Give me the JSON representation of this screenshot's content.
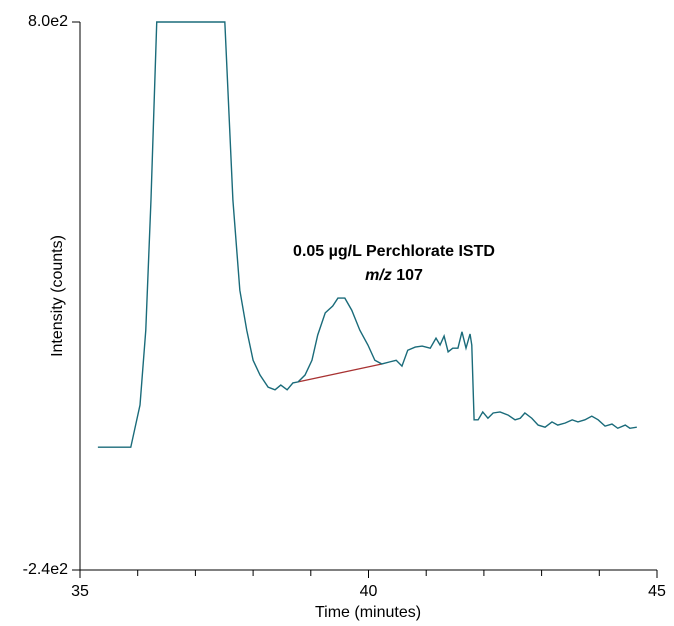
{
  "chart_data": {
    "type": "line",
    "x_label": "Time (minutes)",
    "y_label": "Intensity (counts)",
    "annotation": {
      "text": "0.05 µg/L Perchlorate ISTD",
      "mz_label": "m/z",
      "mz_value": "107"
    },
    "xlim": [
      35,
      45
    ],
    "xticks": [
      35,
      40,
      45
    ],
    "xticks_minor": [
      36,
      37,
      38,
      39,
      41,
      42,
      43,
      44
    ],
    "ylim": [
      -240,
      800
    ],
    "yticks": [
      {
        "value": 800,
        "label": "8.0e2"
      },
      {
        "value": -240,
        "label": "-2.4e2"
      }
    ],
    "color": "#1a6b7a",
    "x": [
      35.31,
      35.88,
      36.04,
      36.14,
      36.23,
      36.33,
      37.51,
      37.65,
      37.77,
      37.89,
      38.0,
      38.12,
      38.26,
      38.38,
      38.48,
      38.59,
      38.69,
      38.78,
      38.9,
      39.02,
      39.12,
      39.25,
      39.38,
      39.47,
      39.59,
      39.71,
      39.85,
      39.99,
      40.11,
      40.23,
      40.37,
      40.48,
      40.58,
      40.68,
      40.81,
      40.93,
      41.07,
      41.17,
      41.24,
      41.31,
      41.38,
      41.46,
      41.55,
      41.62,
      41.69,
      41.76,
      41.79,
      41.83,
      41.9,
      41.98,
      42.07,
      42.16,
      42.28,
      42.42,
      42.54,
      42.63,
      42.71,
      42.83,
      42.94,
      43.06,
      43.18,
      43.28,
      43.41,
      43.53,
      43.63,
      43.75,
      43.87,
      43.98,
      44.1,
      44.22,
      44.32,
      44.45,
      44.53,
      44.65
    ],
    "values": [
      -7,
      -7,
      73,
      215,
      462,
      800,
      800,
      462,
      291,
      215,
      158,
      130,
      107,
      102,
      111,
      102,
      115,
      117,
      130,
      158,
      206,
      248,
      261,
      276,
      276,
      253,
      215,
      187,
      158,
      151,
      155,
      158,
      147,
      177,
      183,
      185,
      181,
      200,
      187,
      204,
      174,
      181,
      181,
      212,
      181,
      208,
      187,
      45,
      45,
      60,
      48,
      58,
      60,
      54,
      45,
      48,
      58,
      48,
      35,
      31,
      41,
      35,
      39,
      45,
      41,
      45,
      52,
      45,
      33,
      37,
      29,
      35,
      29,
      31
    ],
    "baseline": {
      "color": "#a83232",
      "x": [
        38.78,
        40.23
      ],
      "values": [
        117,
        151
      ]
    }
  }
}
